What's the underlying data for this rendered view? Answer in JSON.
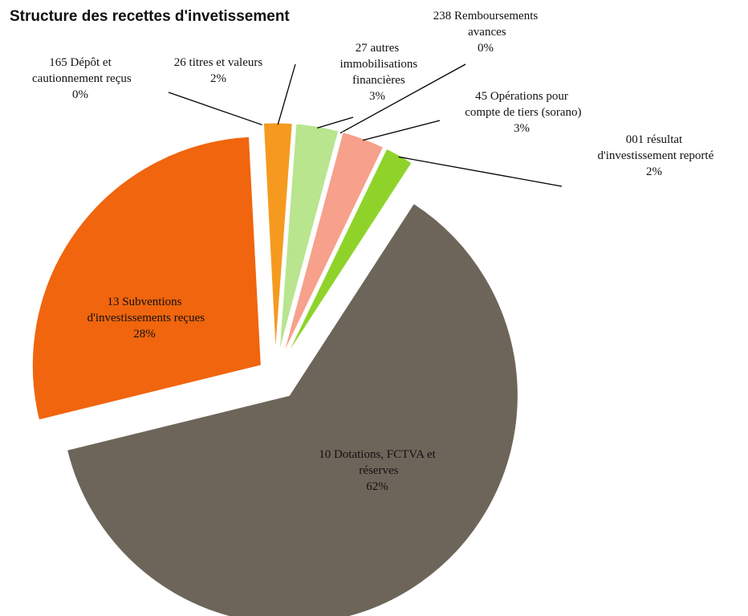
{
  "chart_data": {
    "type": "pie",
    "title": "Structure des recettes d'invetissement",
    "categories": [
      "165 Dépôt et cautionnement reçus",
      "26 titres et valeurs",
      "27 autres immobilisations financières",
      "238 Remboursements avances",
      "45 Opérations pour compte de tiers (sorano)",
      "001 résultat d'investissement reporté",
      "10 Dotations, FCTVA et réserves",
      "13 Subventions d'investissements reçues"
    ],
    "values": [
      0,
      2,
      3,
      0,
      3,
      2,
      62,
      28
    ],
    "value_labels": [
      "0%",
      "2%",
      "3%",
      "0%",
      "3%",
      "2%",
      "62%",
      "28%"
    ],
    "colors": [
      "#f7a23a",
      "#f59a1f",
      "#b8e58e",
      "#cfcfcf",
      "#f7a08c",
      "#8fd32a",
      "#6e655a",
      "#f0650e"
    ]
  }
}
